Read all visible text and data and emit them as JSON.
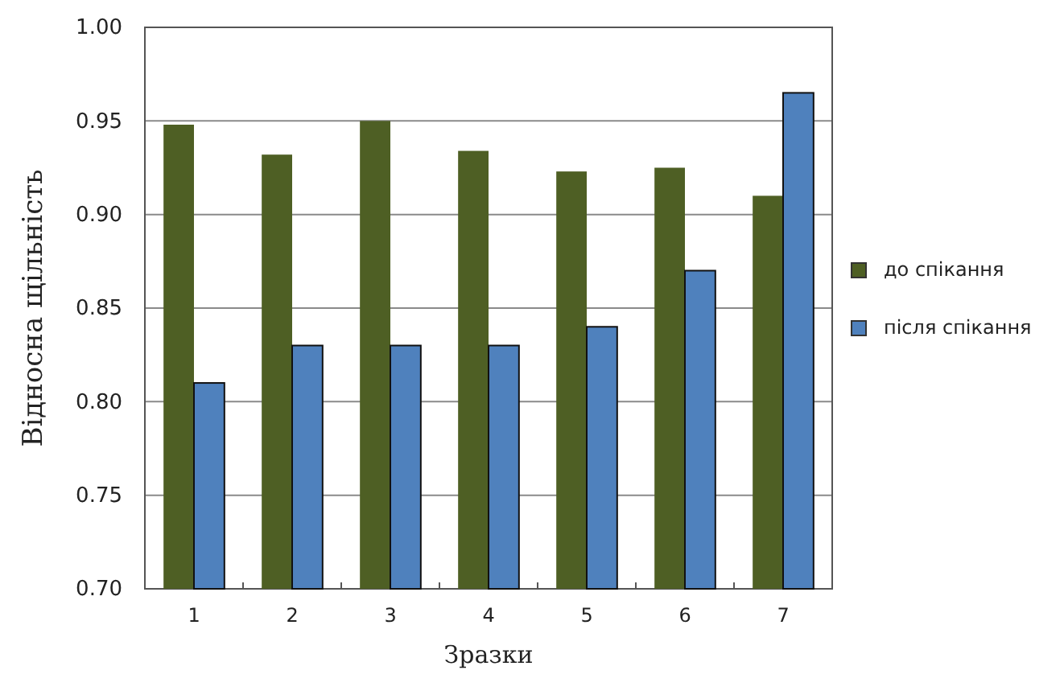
{
  "chart_data": {
    "type": "bar",
    "xlabel": "Зразки",
    "ylabel": "Відносна щільність",
    "categories": [
      "1",
      "2",
      "3",
      "4",
      "5",
      "6",
      "7"
    ],
    "series": [
      {
        "name": "до спікання",
        "color": "#4e5f24",
        "values": [
          0.948,
          0.932,
          0.95,
          0.934,
          0.923,
          0.925,
          0.91
        ]
      },
      {
        "name": "після спікання",
        "color": "#4f81bd",
        "values": [
          0.81,
          0.83,
          0.83,
          0.83,
          0.84,
          0.87,
          0.965
        ]
      }
    ],
    "ylim": [
      0.7,
      1.0
    ],
    "yticks": [
      {
        "value": 0.7,
        "label": "0.70"
      },
      {
        "value": 0.75,
        "label": "0.75"
      },
      {
        "value": 0.8,
        "label": "0.80"
      },
      {
        "value": 0.85,
        "label": "0.85"
      },
      {
        "value": 0.9,
        "label": "0.90"
      },
      {
        "value": 0.95,
        "label": "0.95"
      },
      {
        "value": 1.0,
        "label": "1.00"
      }
    ],
    "grid": "y",
    "legend": "right"
  }
}
